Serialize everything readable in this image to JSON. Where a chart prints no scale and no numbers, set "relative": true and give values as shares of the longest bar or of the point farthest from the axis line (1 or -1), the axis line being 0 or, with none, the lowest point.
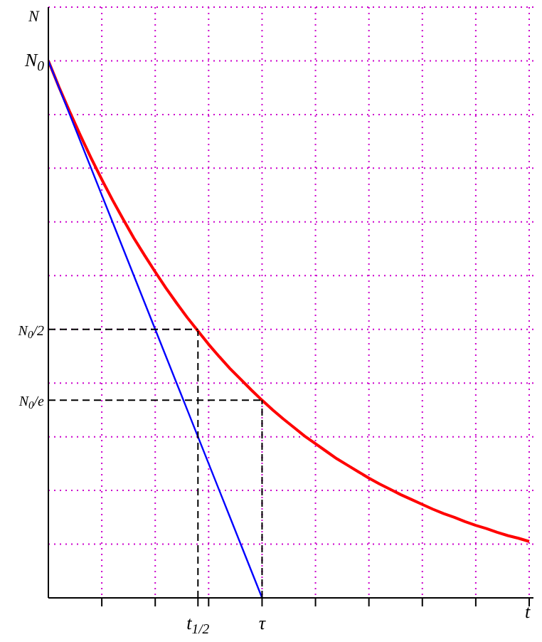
{
  "chart_data": {
    "type": "line",
    "xlabel": "t",
    "ylabel": "N",
    "relative": true,
    "categories": [
      null,
      null,
      null,
      null,
      null,
      null,
      null,
      null,
      null,
      null,
      null,
      null,
      null,
      null,
      "t$_{1/2}$",
      null,
      null,
      null,
      null,
      null,
      "τ",
      null,
      null,
      null,
      null,
      null,
      null,
      null,
      null,
      null,
      null,
      null,
      null,
      null,
      null,
      null,
      null,
      null,
      null,
      null,
      null,
      null,
      null,
      null,
      null,
      null
    ],
    "grid": true,
    "marker": "none",
    "series": [
      {
        "color": "#ff0000",
        "line_style": "solid",
        "values": [
          1,
          0.951,
          0.905,
          0.861,
          0.819,
          0.779,
          0.741,
          0.705,
          0.67,
          0.638,
          0.607,
          0.577,
          0.549,
          0.522,
          0.497,
          0.472,
          0.449,
          0.427,
          0.407,
          0.387,
          0.368,
          0.35,
          0.333,
          0.317,
          0.301,
          0.287,
          0.273,
          0.259,
          0.247,
          0.235,
          0.223,
          0.212,
          0.202,
          0.192,
          0.183,
          0.174,
          0.165,
          0.157,
          0.15,
          0.142,
          0.135,
          0.129,
          0.122,
          0.116,
          0.111,
          0.105
        ]
      },
      {
        "color": "#0000ff",
        "line_style": "solid",
        "values": [
          1,
          0.95,
          0.9,
          0.85,
          0.8,
          0.75,
          0.7,
          0.65,
          0.6,
          0.55,
          0.5,
          0.45,
          0.4,
          0.35,
          0.3,
          0.25,
          0.2,
          0.15,
          0.1,
          0.05,
          0,
          null,
          null,
          null,
          null,
          null,
          null,
          null,
          null,
          null,
          null,
          null,
          null,
          null,
          null,
          null,
          null,
          null,
          null,
          null,
          null,
          null,
          null,
          null,
          null,
          null
        ]
      }
    ],
    "ref_lines": [
      {
        "axis": "y",
        "value": 0.5,
        "label": "N$_{0}$/2",
        "color": "#000000",
        "line_style": "dashed"
      },
      {
        "axis": "y",
        "value": 0.368,
        "label": "N$_{0}$/e",
        "color": "#000000",
        "line_style": "dashed"
      },
      {
        "axis": "x",
        "value": "t$_{1/2}$",
        "color": "#000000",
        "line_style": "dashed"
      },
      {
        "axis": "x",
        "value": "τ",
        "color": "#000000",
        "line_style": "dashed"
      }
    ],
    "annotations": [
      "N$_{0}$"
    ]
  }
}
